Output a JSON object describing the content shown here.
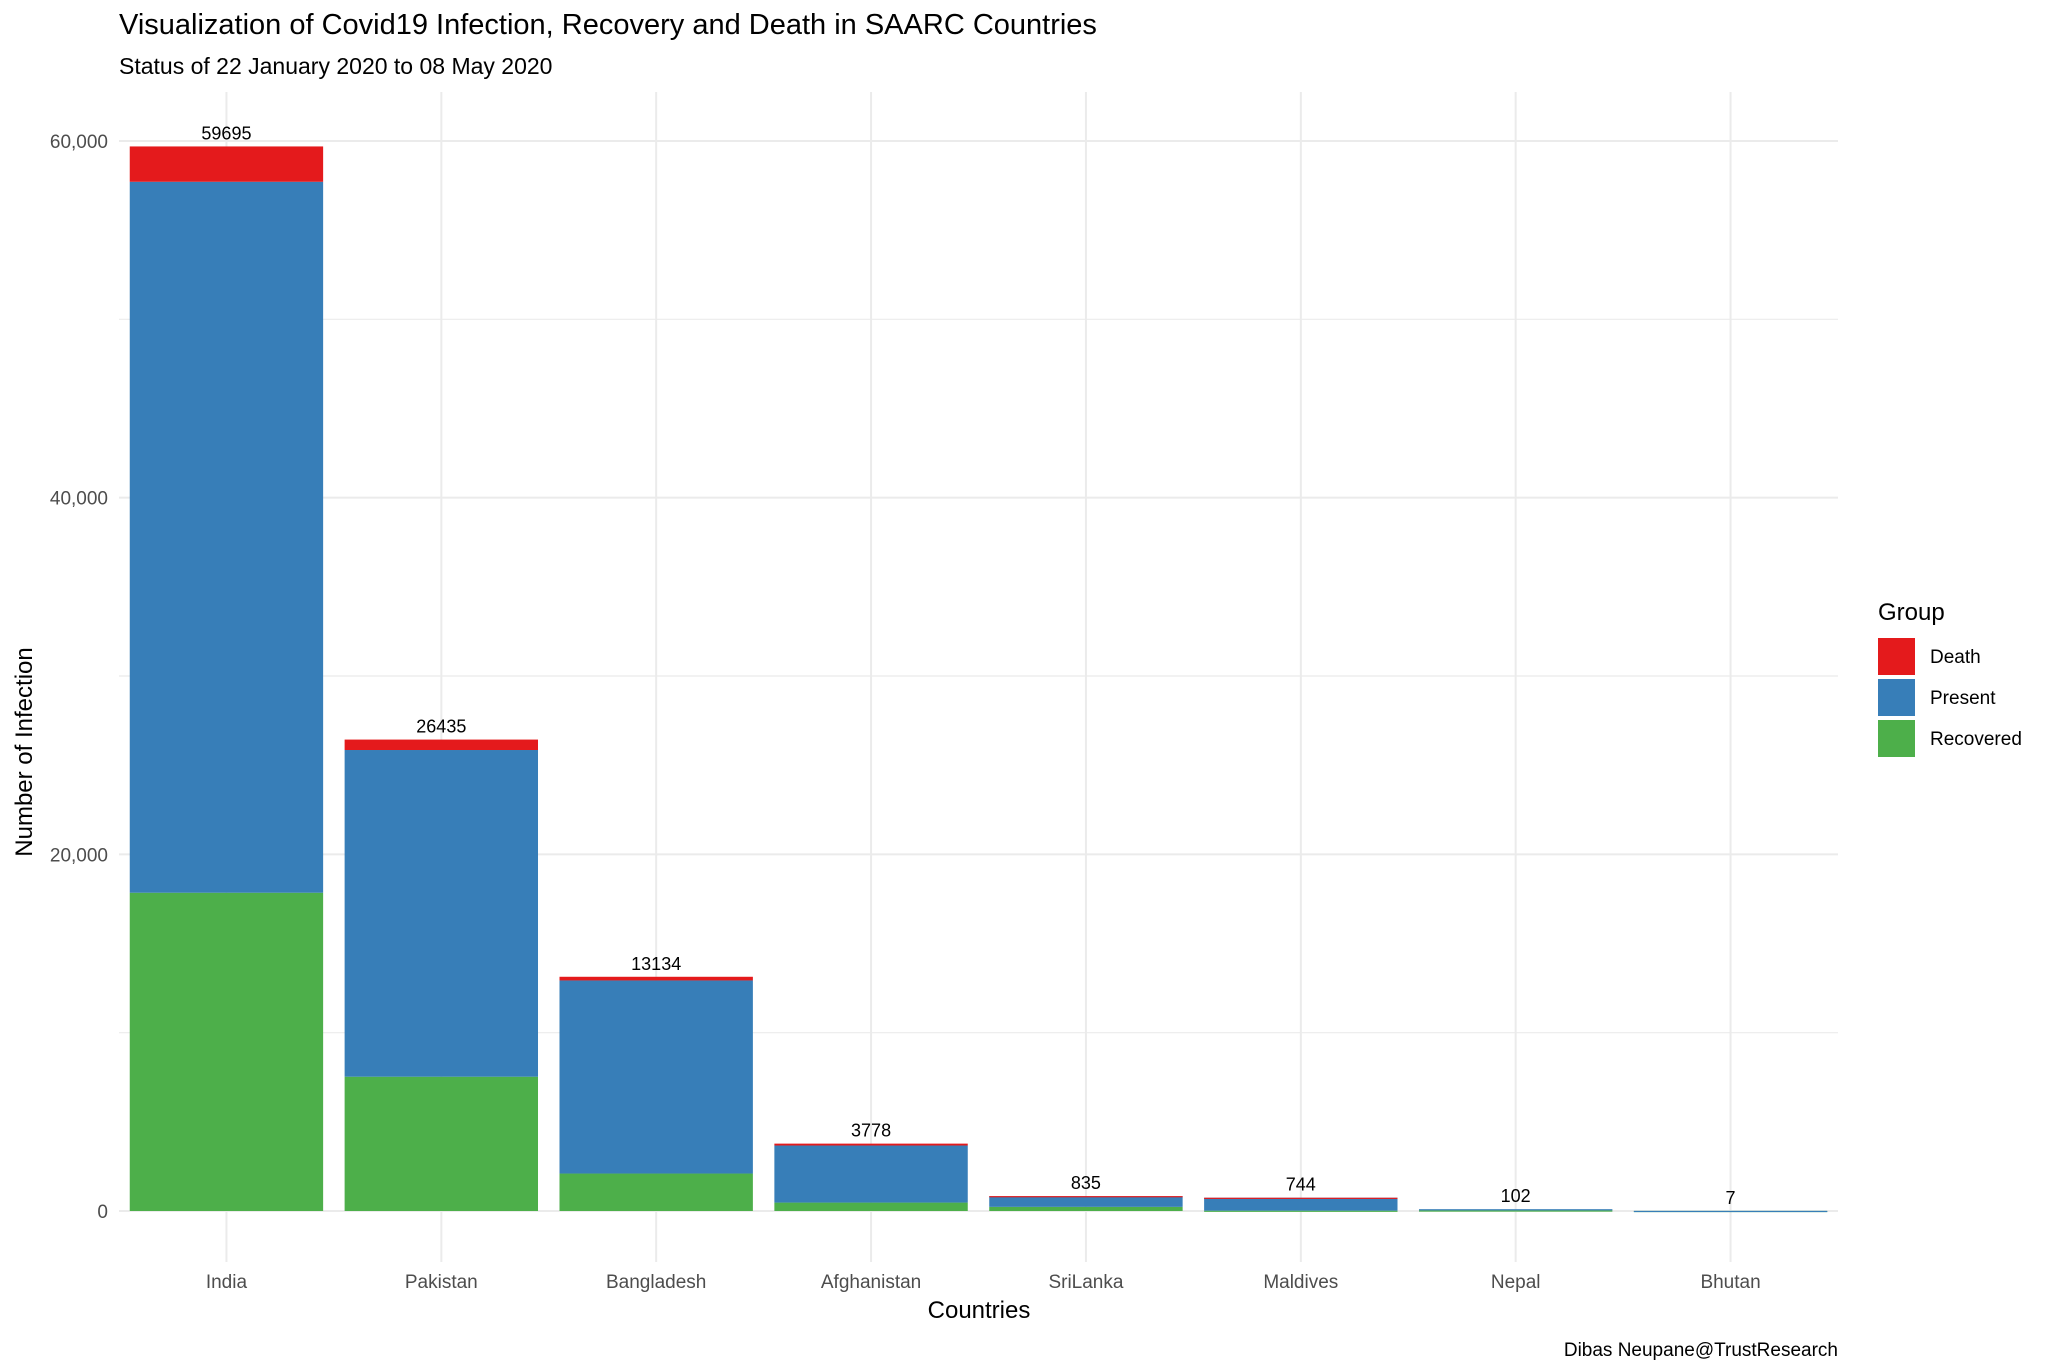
{
  "chart_data": {
    "type": "bar",
    "stacked": true,
    "title": "Visualization of Covid19 Infection, Recovery and Death in SAARC  Countries",
    "subtitle": "Status of  22 January 2020 to 08 May 2020",
    "xlabel": "Countries",
    "ylabel": "Number of Infection",
    "caption": "Dibas Neupane@TrustResearch",
    "categories": [
      "India",
      "Pakistan",
      "Bangladesh",
      "Afghanistan",
      "SriLanka",
      "Maldives",
      "Nepal",
      "Bhutan"
    ],
    "series": [
      {
        "name": "Recovered",
        "color": "#4daf4a",
        "values": [
          17847,
          7530,
          2101,
          472,
          232,
          19,
          31,
          5
        ]
      },
      {
        "name": "Present",
        "color": "#377eb8",
        "values": [
          39867,
          18320,
          10827,
          3200,
          594,
          724,
          71,
          2
        ]
      },
      {
        "name": "Death",
        "color": "#e41a1c",
        "values": [
          1981,
          585,
          206,
          106,
          9,
          1,
          0,
          0
        ]
      }
    ],
    "totals": [
      59695,
      26435,
      13134,
      3778,
      835,
      744,
      102,
      7
    ],
    "ylim": [
      0,
      62000
    ],
    "yticks": [
      0,
      20000,
      40000,
      60000
    ],
    "ytick_labels": [
      "0",
      "20,000",
      "40,000",
      "60,000"
    ],
    "grid": true,
    "legend": {
      "title": "Group",
      "position": "right",
      "items": [
        {
          "label": "Death",
          "color": "#e41a1c"
        },
        {
          "label": "Present",
          "color": "#377eb8"
        },
        {
          "label": "Recovered",
          "color": "#4daf4a"
        }
      ]
    }
  }
}
